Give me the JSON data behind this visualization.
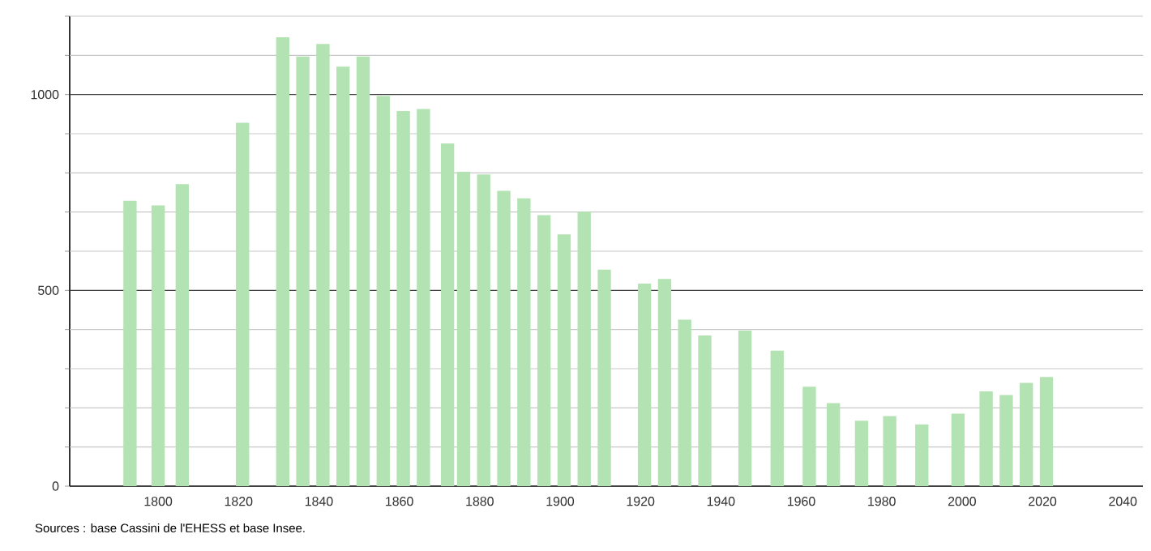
{
  "chart_data": {
    "type": "bar",
    "color": "#b3e3b3",
    "x": [
      1793,
      1800,
      1806,
      1821,
      1831,
      1836,
      1841,
      1846,
      1851,
      1856,
      1861,
      1866,
      1872,
      1876,
      1881,
      1886,
      1891,
      1896,
      1901,
      1906,
      1911,
      1921,
      1926,
      1931,
      1936,
      1946,
      1954,
      1962,
      1968,
      1975,
      1982,
      1990,
      1999,
      2006,
      2011,
      2016,
      2021
    ],
    "values": [
      729,
      717,
      771,
      928,
      1146,
      1097,
      1129,
      1071,
      1097,
      996,
      958,
      963,
      875,
      803,
      796,
      754,
      735,
      692,
      643,
      701,
      553,
      517,
      529,
      425,
      385,
      397,
      346,
      254,
      212,
      167,
      179,
      158,
      185,
      242,
      233,
      264,
      279
    ],
    "xlim": [
      1778,
      2045
    ],
    "ylim": [
      0,
      1200
    ],
    "xticks": [
      1800,
      1820,
      1840,
      1860,
      1880,
      1900,
      1920,
      1940,
      1960,
      1980,
      2000,
      2020,
      2040
    ],
    "yticks": [
      0,
      {
        "value": 100,
        "label": null
      },
      {
        "value": 200,
        "label": null
      },
      {
        "value": 300,
        "label": null
      },
      {
        "value": 400,
        "label": null
      },
      500,
      {
        "value": 600,
        "label": null
      },
      {
        "value": 700,
        "label": null
      },
      {
        "value": 800,
        "label": null
      },
      {
        "value": 900,
        "label": null
      },
      1000,
      {
        "value": 1100,
        "label": null
      },
      {
        "value": 1200,
        "label": null
      }
    ],
    "grid": "y",
    "annotations": [
      "Sources : base Cassini de l'EHESS et base Insee."
    ]
  }
}
